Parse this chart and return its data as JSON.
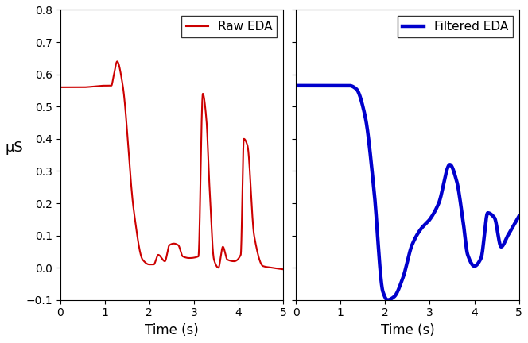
{
  "raw_color": "#cc0000",
  "filtered_color": "#0000cc",
  "raw_linewidth": 1.5,
  "filtered_linewidth": 3.2,
  "ylim": [
    -0.1,
    0.8
  ],
  "xlim": [
    0,
    5
  ],
  "yticks": [
    -0.1,
    0.0,
    0.1,
    0.2,
    0.3,
    0.4,
    0.5,
    0.6,
    0.7,
    0.8
  ],
  "xticks": [
    0,
    1,
    2,
    3,
    4,
    5
  ],
  "xlabel": "Time (s)",
  "ylabel": "μS",
  "raw_legend": "Raw EDA",
  "filtered_legend": "Filtered EDA",
  "figsize": [
    6.64,
    4.32
  ],
  "dpi": 100
}
